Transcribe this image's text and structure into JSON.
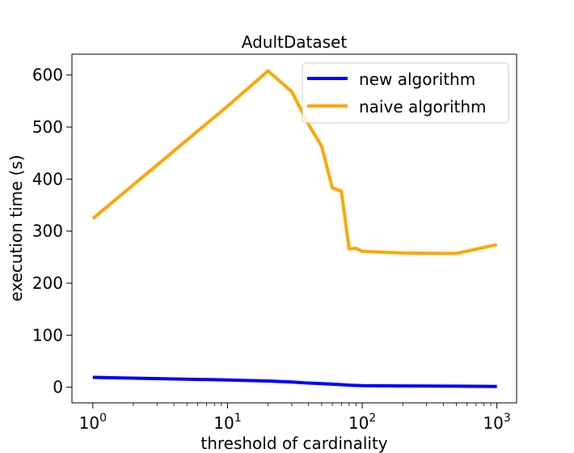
{
  "chart_data": {
    "type": "line",
    "title": "AdultDataset",
    "xlabel": "threshold of cardinality",
    "ylabel": "execution time (s)",
    "x_scale": "log",
    "xlim": [
      0.7,
      1400
    ],
    "ylim": [
      -30,
      640
    ],
    "x_ticks": [
      {
        "value": 1,
        "base": "10",
        "exp": "0"
      },
      {
        "value": 10,
        "base": "10",
        "exp": "1"
      },
      {
        "value": 100,
        "base": "10",
        "exp": "2"
      },
      {
        "value": 1000,
        "base": "10",
        "exp": "3"
      }
    ],
    "y_ticks": [
      0,
      100,
      200,
      300,
      400,
      500,
      600
    ],
    "legend_position": "top-right",
    "grid": false,
    "series": [
      {
        "name": "new algorithm",
        "color": "#0000ff",
        "x": [
          1,
          10,
          20,
          30,
          40,
          50,
          60,
          70,
          80,
          90,
          100,
          200,
          500,
          1000
        ],
        "y": [
          19,
          14,
          12,
          10,
          8,
          7,
          6,
          5,
          4,
          3.5,
          3,
          2.5,
          2,
          1.5
        ]
      },
      {
        "name": "naive algorithm",
        "color": "#ffa500",
        "x": [
          1,
          10,
          20,
          30,
          40,
          50,
          60,
          70,
          80,
          90,
          100,
          200,
          500,
          1000
        ],
        "y": [
          324,
          540,
          608,
          568,
          505,
          463,
          383,
          377,
          266,
          267,
          261,
          258,
          257,
          274
        ]
      }
    ]
  }
}
